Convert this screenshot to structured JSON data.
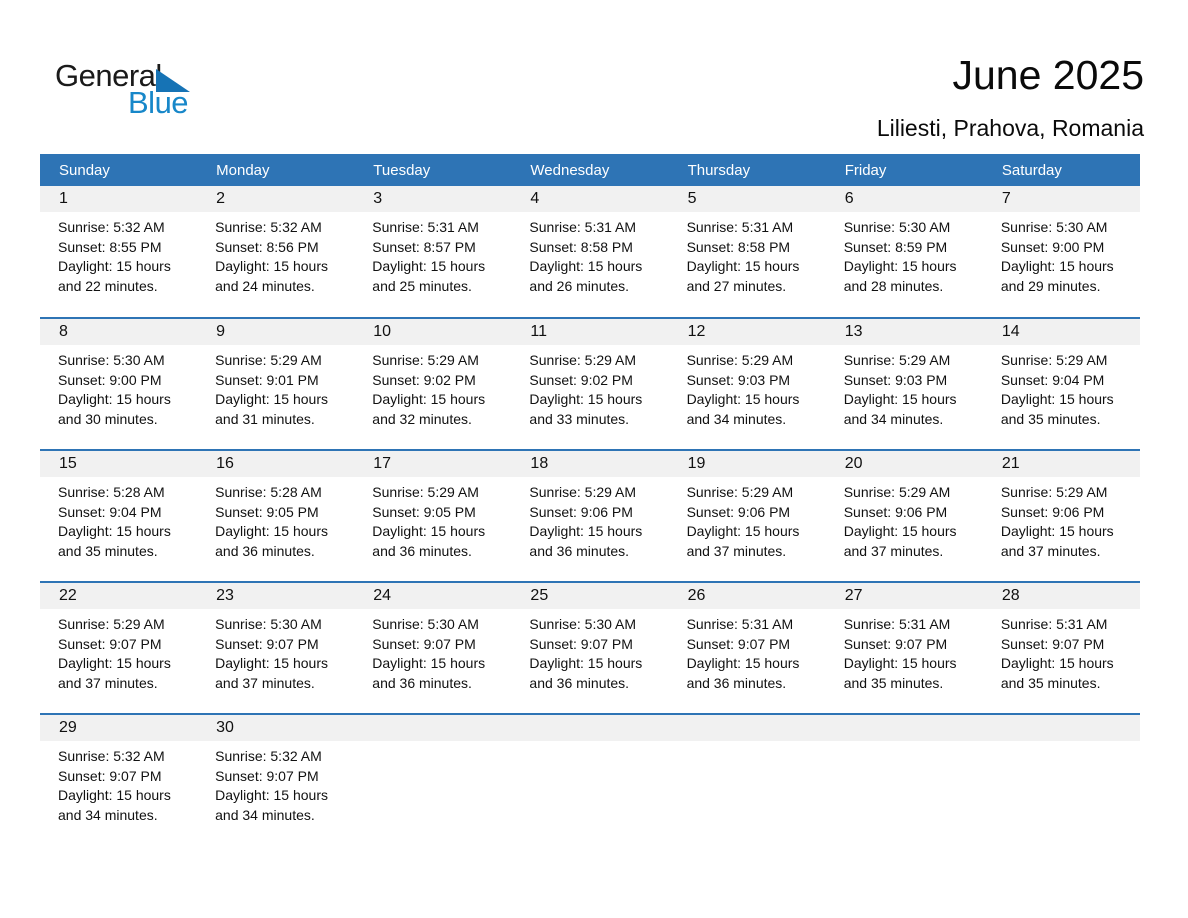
{
  "logo": {
    "text_top": "General",
    "text_bottom": "Blue"
  },
  "header": {
    "title": "June 2025",
    "subtitle": "Liliesti, Prahova, Romania"
  },
  "colors": {
    "header_bar_blue": "#2E74B5",
    "row_separator_blue": "#2E74B5",
    "day_strip_gray": "#F1F1F1",
    "logo_text_blue": "#1787C9",
    "logo_triangle_blue": "#1673B5",
    "weekday_text": "#ffffff",
    "body_text": "#111111"
  },
  "calendar": {
    "weekday_headers": [
      "Sunday",
      "Monday",
      "Tuesday",
      "Wednesday",
      "Thursday",
      "Friday",
      "Saturday"
    ],
    "weeks": [
      [
        {
          "day": "1",
          "sunrise": "Sunrise: 5:32 AM",
          "sunset": "Sunset: 8:55 PM",
          "daylight_line1": "Daylight: 15 hours",
          "daylight_line2": "and 22 minutes."
        },
        {
          "day": "2",
          "sunrise": "Sunrise: 5:32 AM",
          "sunset": "Sunset: 8:56 PM",
          "daylight_line1": "Daylight: 15 hours",
          "daylight_line2": "and 24 minutes."
        },
        {
          "day": "3",
          "sunrise": "Sunrise: 5:31 AM",
          "sunset": "Sunset: 8:57 PM",
          "daylight_line1": "Daylight: 15 hours",
          "daylight_line2": "and 25 minutes."
        },
        {
          "day": "4",
          "sunrise": "Sunrise: 5:31 AM",
          "sunset": "Sunset: 8:58 PM",
          "daylight_line1": "Daylight: 15 hours",
          "daylight_line2": "and 26 minutes."
        },
        {
          "day": "5",
          "sunrise": "Sunrise: 5:31 AM",
          "sunset": "Sunset: 8:58 PM",
          "daylight_line1": "Daylight: 15 hours",
          "daylight_line2": "and 27 minutes."
        },
        {
          "day": "6",
          "sunrise": "Sunrise: 5:30 AM",
          "sunset": "Sunset: 8:59 PM",
          "daylight_line1": "Daylight: 15 hours",
          "daylight_line2": "and 28 minutes."
        },
        {
          "day": "7",
          "sunrise": "Sunrise: 5:30 AM",
          "sunset": "Sunset: 9:00 PM",
          "daylight_line1": "Daylight: 15 hours",
          "daylight_line2": "and 29 minutes."
        }
      ],
      [
        {
          "day": "8",
          "sunrise": "Sunrise: 5:30 AM",
          "sunset": "Sunset: 9:00 PM",
          "daylight_line1": "Daylight: 15 hours",
          "daylight_line2": "and 30 minutes."
        },
        {
          "day": "9",
          "sunrise": "Sunrise: 5:29 AM",
          "sunset": "Sunset: 9:01 PM",
          "daylight_line1": "Daylight: 15 hours",
          "daylight_line2": "and 31 minutes."
        },
        {
          "day": "10",
          "sunrise": "Sunrise: 5:29 AM",
          "sunset": "Sunset: 9:02 PM",
          "daylight_line1": "Daylight: 15 hours",
          "daylight_line2": "and 32 minutes."
        },
        {
          "day": "11",
          "sunrise": "Sunrise: 5:29 AM",
          "sunset": "Sunset: 9:02 PM",
          "daylight_line1": "Daylight: 15 hours",
          "daylight_line2": "and 33 minutes."
        },
        {
          "day": "12",
          "sunrise": "Sunrise: 5:29 AM",
          "sunset": "Sunset: 9:03 PM",
          "daylight_line1": "Daylight: 15 hours",
          "daylight_line2": "and 34 minutes."
        },
        {
          "day": "13",
          "sunrise": "Sunrise: 5:29 AM",
          "sunset": "Sunset: 9:03 PM",
          "daylight_line1": "Daylight: 15 hours",
          "daylight_line2": "and 34 minutes."
        },
        {
          "day": "14",
          "sunrise": "Sunrise: 5:29 AM",
          "sunset": "Sunset: 9:04 PM",
          "daylight_line1": "Daylight: 15 hours",
          "daylight_line2": "and 35 minutes."
        }
      ],
      [
        {
          "day": "15",
          "sunrise": "Sunrise: 5:28 AM",
          "sunset": "Sunset: 9:04 PM",
          "daylight_line1": "Daylight: 15 hours",
          "daylight_line2": "and 35 minutes."
        },
        {
          "day": "16",
          "sunrise": "Sunrise: 5:28 AM",
          "sunset": "Sunset: 9:05 PM",
          "daylight_line1": "Daylight: 15 hours",
          "daylight_line2": "and 36 minutes."
        },
        {
          "day": "17",
          "sunrise": "Sunrise: 5:29 AM",
          "sunset": "Sunset: 9:05 PM",
          "daylight_line1": "Daylight: 15 hours",
          "daylight_line2": "and 36 minutes."
        },
        {
          "day": "18",
          "sunrise": "Sunrise: 5:29 AM",
          "sunset": "Sunset: 9:06 PM",
          "daylight_line1": "Daylight: 15 hours",
          "daylight_line2": "and 36 minutes."
        },
        {
          "day": "19",
          "sunrise": "Sunrise: 5:29 AM",
          "sunset": "Sunset: 9:06 PM",
          "daylight_line1": "Daylight: 15 hours",
          "daylight_line2": "and 37 minutes."
        },
        {
          "day": "20",
          "sunrise": "Sunrise: 5:29 AM",
          "sunset": "Sunset: 9:06 PM",
          "daylight_line1": "Daylight: 15 hours",
          "daylight_line2": "and 37 minutes."
        },
        {
          "day": "21",
          "sunrise": "Sunrise: 5:29 AM",
          "sunset": "Sunset: 9:06 PM",
          "daylight_line1": "Daylight: 15 hours",
          "daylight_line2": "and 37 minutes."
        }
      ],
      [
        {
          "day": "22",
          "sunrise": "Sunrise: 5:29 AM",
          "sunset": "Sunset: 9:07 PM",
          "daylight_line1": "Daylight: 15 hours",
          "daylight_line2": "and 37 minutes."
        },
        {
          "day": "23",
          "sunrise": "Sunrise: 5:30 AM",
          "sunset": "Sunset: 9:07 PM",
          "daylight_line1": "Daylight: 15 hours",
          "daylight_line2": "and 37 minutes."
        },
        {
          "day": "24",
          "sunrise": "Sunrise: 5:30 AM",
          "sunset": "Sunset: 9:07 PM",
          "daylight_line1": "Daylight: 15 hours",
          "daylight_line2": "and 36 minutes."
        },
        {
          "day": "25",
          "sunrise": "Sunrise: 5:30 AM",
          "sunset": "Sunset: 9:07 PM",
          "daylight_line1": "Daylight: 15 hours",
          "daylight_line2": "and 36 minutes."
        },
        {
          "day": "26",
          "sunrise": "Sunrise: 5:31 AM",
          "sunset": "Sunset: 9:07 PM",
          "daylight_line1": "Daylight: 15 hours",
          "daylight_line2": "and 36 minutes."
        },
        {
          "day": "27",
          "sunrise": "Sunrise: 5:31 AM",
          "sunset": "Sunset: 9:07 PM",
          "daylight_line1": "Daylight: 15 hours",
          "daylight_line2": "and 35 minutes."
        },
        {
          "day": "28",
          "sunrise": "Sunrise: 5:31 AM",
          "sunset": "Sunset: 9:07 PM",
          "daylight_line1": "Daylight: 15 hours",
          "daylight_line2": "and 35 minutes."
        }
      ],
      [
        {
          "day": "29",
          "sunrise": "Sunrise: 5:32 AM",
          "sunset": "Sunset: 9:07 PM",
          "daylight_line1": "Daylight: 15 hours",
          "daylight_line2": "and 34 minutes."
        },
        {
          "day": "30",
          "sunrise": "Sunrise: 5:32 AM",
          "sunset": "Sunset: 9:07 PM",
          "daylight_line1": "Daylight: 15 hours",
          "daylight_line2": "and 34 minutes."
        },
        null,
        null,
        null,
        null,
        null
      ]
    ]
  }
}
